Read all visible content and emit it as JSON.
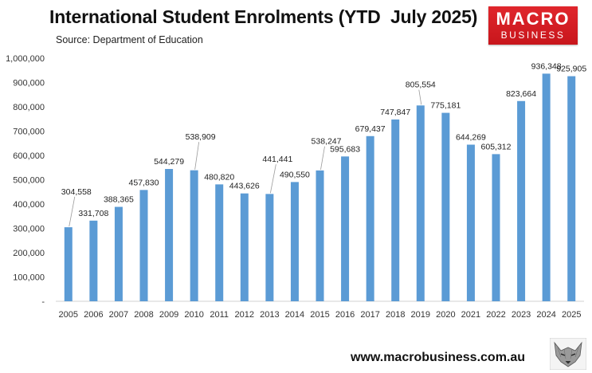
{
  "header": {
    "title": "International Student Enrolments (YTD  July 2025)",
    "subtitle": "Source: Department of Education"
  },
  "logo": {
    "line1": "MACRO",
    "line2": "BUSINESS",
    "color": "#d41f26"
  },
  "footer": {
    "url": "www.macrobusiness.com.au",
    "icon": "wolf-icon"
  },
  "chart_data": {
    "type": "bar",
    "categories": [
      "2005",
      "2006",
      "2007",
      "2008",
      "2009",
      "2010",
      "2011",
      "2012",
      "2013",
      "2014",
      "2015",
      "2016",
      "2017",
      "2018",
      "2019",
      "2020",
      "2021",
      "2022",
      "2023",
      "2024",
      "2025"
    ],
    "series": [
      {
        "values": [
          304558,
          331708,
          388365,
          457830,
          544279,
          538909,
          480820,
          443626,
          441441,
          490550,
          538247,
          595683,
          679437,
          747847,
          805554,
          775181,
          644269,
          605312,
          823664,
          936348,
          925905
        ],
        "data_labels": [
          "304,558",
          "331,708",
          "388,365",
          "457,830",
          "544,279",
          "538,909",
          "480,820",
          "443,626",
          "441,441",
          "490,550",
          "538,247",
          "595,683",
          "679,437",
          "747,847",
          "805,554",
          "775,181",
          "644,269",
          "605,312",
          "823,664",
          "936,348",
          "925,905"
        ],
        "color": "#5b9bd5"
      }
    ],
    "ylim": [
      0,
      1000000
    ],
    "y_ticks": [
      0,
      100000,
      200000,
      300000,
      400000,
      500000,
      600000,
      700000,
      800000,
      900000,
      1000000
    ],
    "y_tick_labels": [
      "-",
      "100,000",
      "200,000",
      "300,000",
      "400,000",
      "500,000",
      "600,000",
      "700,000",
      "800,000",
      "900,000",
      "1,000,000"
    ],
    "xlabel": "",
    "ylabel": "",
    "grid": false,
    "legend": "none"
  }
}
